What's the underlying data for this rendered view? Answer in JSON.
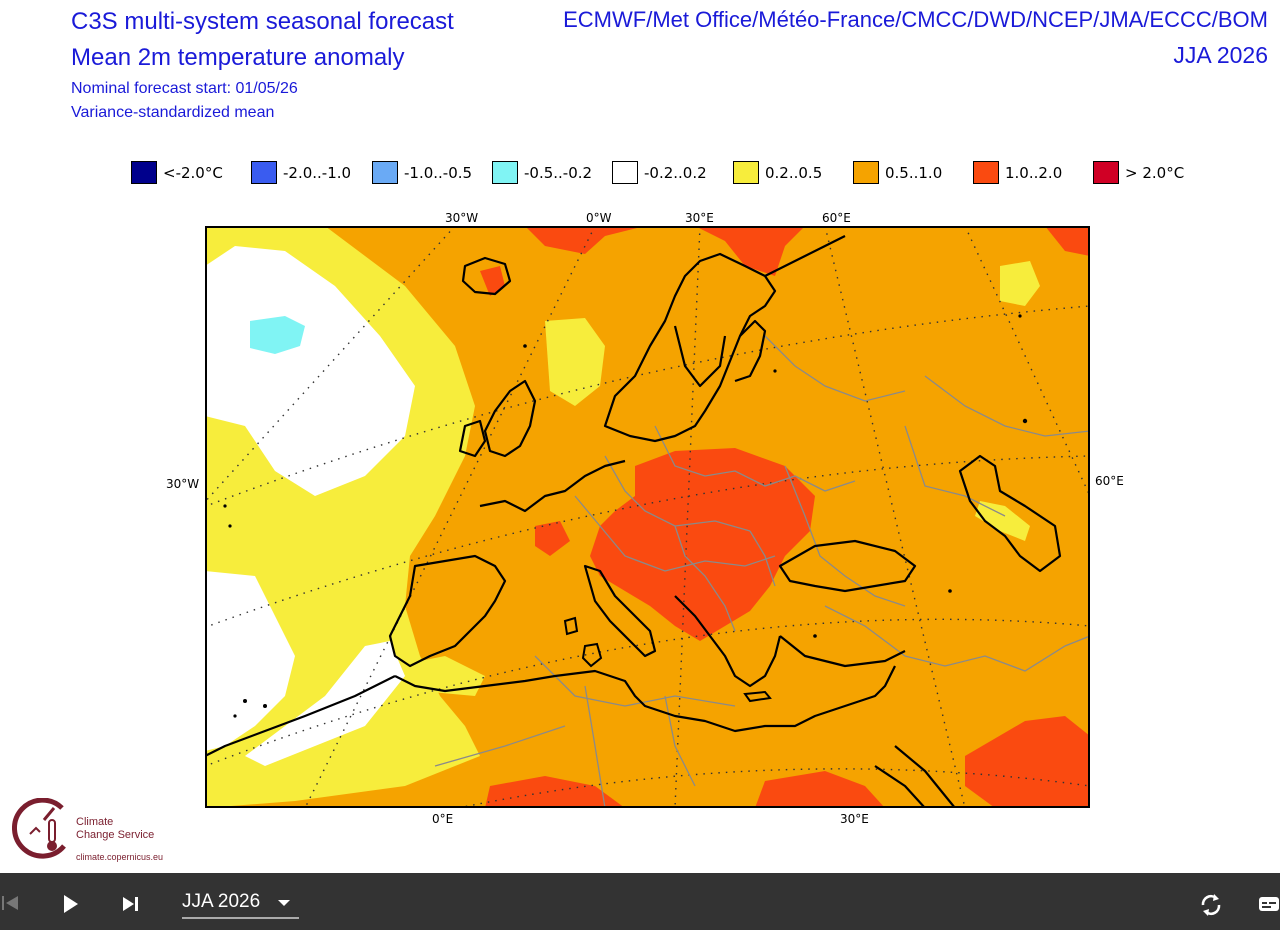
{
  "header": {
    "title_line1": "C3S multi-system seasonal forecast",
    "title_line2": "Mean 2m temperature anomaly",
    "forecast_start": "Nominal forecast start: 01/05/26",
    "method": "Variance-standardized mean",
    "centres": "ECMWF/Met Office/Météo-France/CMCC/DWD/NCEP/JMA/ECCC/BOM",
    "season": "JJA 2026"
  },
  "legend": [
    {
      "label": "<-2.0°C",
      "color": "#00008c"
    },
    {
      "label": "-2.0..-1.0",
      "color": "#3a5cf0"
    },
    {
      "label": "-1.0..-0.5",
      "color": "#6aaaf5"
    },
    {
      "label": "-0.5..-0.2",
      "color": "#80f4f4"
    },
    {
      "label": "-0.2..0.2",
      "color": "#ffffff"
    },
    {
      "label": "0.2..0.5",
      "color": "#f7ed3c"
    },
    {
      "label": "0.5..1.0",
      "color": "#f5a300"
    },
    {
      "label": "1.0..2.0",
      "color": "#fa4a10"
    },
    {
      "label": "> 2.0°C",
      "color": "#d00025"
    }
  ],
  "map_labels": {
    "top": [
      "30°W",
      "0°W",
      "30°E",
      "60°E"
    ],
    "left": "30°W",
    "right": "60°E",
    "bottom": [
      "0°E",
      "30°E"
    ]
  },
  "logo": {
    "name_line1": "Climate",
    "name_line2": "Change Service",
    "url": "climate.copernicus.eu"
  },
  "controls": {
    "selected_season": "JJA 2026"
  }
}
